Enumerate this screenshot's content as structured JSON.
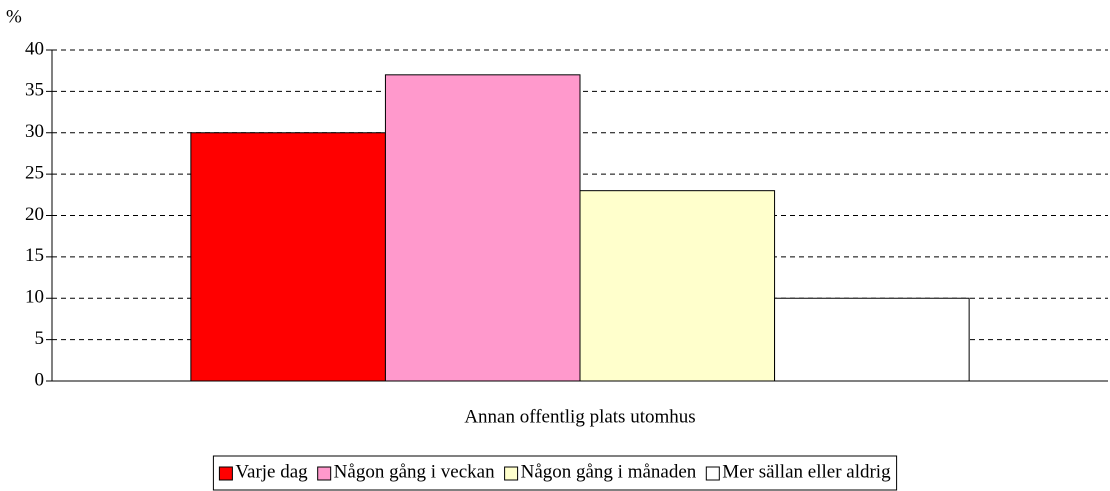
{
  "chart_data": {
    "type": "bar",
    "y_label": "%",
    "categories": [
      "Annan offentlig plats utomhus"
    ],
    "series": [
      {
        "name": "Varje dag",
        "color": "#ff0000",
        "values": [
          30
        ]
      },
      {
        "name": "Någon gång i veckan",
        "color": "#ff99cc",
        "values": [
          37
        ]
      },
      {
        "name": "Någon gång i månaden",
        "color": "#ffffcc",
        "values": [
          23
        ]
      },
      {
        "name": "Mer sällan eller aldrig",
        "color": "#ffffff",
        "values": [
          10
        ]
      }
    ],
    "ylim": [
      0,
      40
    ],
    "yticks": [
      0,
      5,
      10,
      15,
      20,
      25,
      30,
      35,
      40
    ],
    "grid": true,
    "legend": "bottom"
  }
}
